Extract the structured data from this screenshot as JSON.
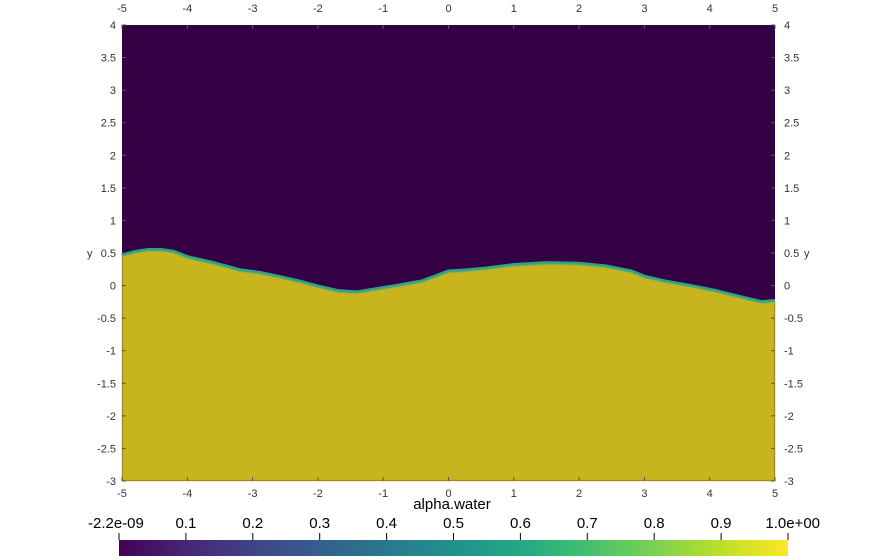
{
  "chart_data": {
    "type": "heatmap",
    "title": "",
    "xlabel": "",
    "ylabel": "y",
    "xlim": [
      -5,
      5
    ],
    "ylim": [
      -3,
      4
    ],
    "x_ticks": [
      "-5",
      "-4",
      "-3",
      "-2",
      "-1",
      "0",
      "1",
      "2",
      "3",
      "4",
      "5"
    ],
    "y_ticks": [
      "-3",
      "-2.5",
      "-2",
      "-1.5",
      "-1",
      "-0.5",
      "0",
      "0.5",
      "1",
      "1.5",
      "2",
      "2.5",
      "3",
      "3.5",
      "4"
    ],
    "field_name": "alpha.water",
    "value_range": [
      -2.2e-09,
      1.0
    ],
    "colormap": "viridis",
    "colorbar_labels": [
      "-2.2e-09",
      "0.1",
      "0.2",
      "0.3",
      "0.4",
      "0.5",
      "0.6",
      "0.7",
      "0.8",
      "0.9",
      "1.0e+00"
    ],
    "colors": {
      "air": "#330044",
      "water": "#c8b41e",
      "interface": "#2aa38c"
    },
    "interface_profile": {
      "x": [
        -5.0,
        -4.8,
        -4.6,
        -4.4,
        -4.2,
        -4.0,
        -3.6,
        -3.2,
        -2.9,
        -2.6,
        -2.3,
        -2.0,
        -1.7,
        -1.4,
        -1.1,
        -0.8,
        -0.4,
        0.0,
        0.3,
        0.6,
        1.0,
        1.5,
        2.0,
        2.4,
        2.8,
        3.0,
        3.3,
        3.7,
        4.1,
        4.5,
        4.8,
        5.0
      ],
      "y": [
        0.45,
        0.5,
        0.53,
        0.53,
        0.5,
        0.42,
        0.33,
        0.22,
        0.18,
        0.12,
        0.05,
        -0.03,
        -0.1,
        -0.12,
        -0.07,
        -0.02,
        0.05,
        0.2,
        0.22,
        0.25,
        0.3,
        0.33,
        0.32,
        0.28,
        0.2,
        0.12,
        0.05,
        -0.02,
        -0.1,
        -0.2,
        -0.27,
        -0.25
      ]
    }
  }
}
